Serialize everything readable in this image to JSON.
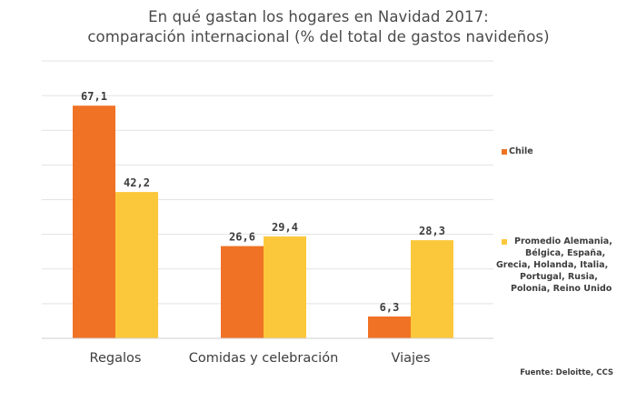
{
  "chart_data": {
    "type": "bar",
    "title": "En qué gastan los hogares en Navidad 2017:",
    "subtitle": "comparación internacional  (% del total de gastos navideños)",
    "categories": [
      "Regalos",
      "Comidas y celebración",
      "Viajes"
    ],
    "series": [
      {
        "name": "Chile",
        "color": "#f07224",
        "values": [
          67.1,
          26.6,
          6.3
        ],
        "labels": [
          "67,1",
          "26,6",
          "6,3"
        ]
      },
      {
        "name": "Promedio Alemania, Bélgica, España, Grecia, Holanda, Italia, Portugal, Rusia, Polonia, Reino Unido",
        "color": "#fcc83b",
        "values": [
          42.2,
          29.4,
          28.3
        ],
        "labels": [
          "42,2",
          "29,4",
          "28,3"
        ]
      }
    ],
    "ylim": [
      0,
      80
    ],
    "grid": true,
    "legend_position": "right",
    "legend": {
      "chile": "Chile",
      "promedio_lines": [
        "Promedio Alemania,",
        "Bélgica, España,",
        "Grecia, Holanda, Italia,",
        "Portugal, Rusia,",
        "Polonia, Reino Unido"
      ]
    },
    "source": "Fuente: Deloitte, CCS"
  }
}
